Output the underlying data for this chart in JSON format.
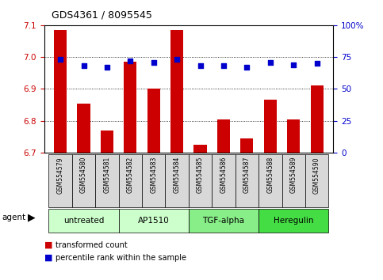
{
  "title": "GDS4361 / 8095545",
  "samples": [
    "GSM554579",
    "GSM554580",
    "GSM554581",
    "GSM554582",
    "GSM554583",
    "GSM554584",
    "GSM554585",
    "GSM554586",
    "GSM554587",
    "GSM554588",
    "GSM554589",
    "GSM554590"
  ],
  "bar_values": [
    7.085,
    6.855,
    6.77,
    6.985,
    6.9,
    7.085,
    6.725,
    6.805,
    6.745,
    6.865,
    6.805,
    6.91
  ],
  "percentile_values": [
    73,
    68,
    67,
    72,
    71,
    73,
    68,
    68,
    67,
    71,
    69,
    70
  ],
  "bar_color": "#cc0000",
  "dot_color": "#0000cc",
  "ylim_left": [
    6.7,
    7.1
  ],
  "ylim_right": [
    0,
    100
  ],
  "yticks_left": [
    6.7,
    6.8,
    6.9,
    7.0,
    7.1
  ],
  "yticks_right": [
    0,
    25,
    50,
    75,
    100
  ],
  "ytick_labels_right": [
    "0",
    "25",
    "50",
    "75",
    "100%"
  ],
  "grid_values": [
    6.8,
    6.9,
    7.0
  ],
  "agent_groups": [
    {
      "label": "untreated",
      "indices": [
        0,
        1,
        2
      ],
      "color": "#ccffcc"
    },
    {
      "label": "AP1510",
      "indices": [
        3,
        4,
        5
      ],
      "color": "#ccffcc"
    },
    {
      "label": "TGF-alpha",
      "indices": [
        6,
        7,
        8
      ],
      "color": "#88ee88"
    },
    {
      "label": "Heregulin",
      "indices": [
        9,
        10,
        11
      ],
      "color": "#44dd44"
    }
  ],
  "agent_label": "agent",
  "legend_bar_label": "transformed count",
  "legend_dot_label": "percentile rank within the sample",
  "background_color": "#ffffff",
  "plot_bg_color": "#ffffff",
  "sample_box_color": "#d8d8d8"
}
